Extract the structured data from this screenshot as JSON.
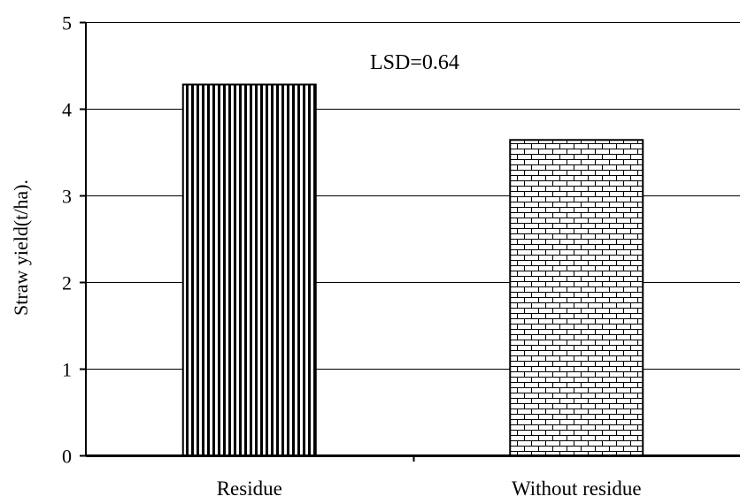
{
  "chart_data": {
    "type": "bar",
    "title": "",
    "xlabel": "",
    "ylabel": "Straw yield(t/ha).",
    "ylim": [
      0,
      5
    ],
    "yticks": [
      "0",
      "1",
      "2",
      "3",
      "4",
      "5"
    ],
    "grid": true,
    "categories": [
      "Residue",
      "Without residue"
    ],
    "values": [
      4.28,
      3.64
    ],
    "patterns": [
      "vertical-stripes",
      "brick"
    ],
    "annotation": "LSD=0.64"
  }
}
